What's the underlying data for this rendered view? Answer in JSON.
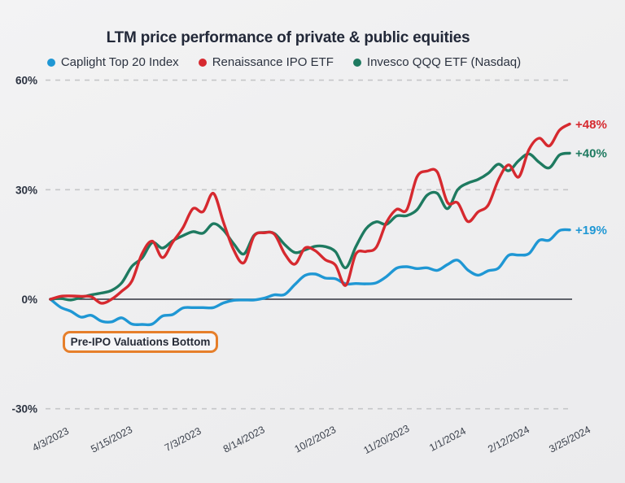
{
  "header": {
    "title": "LTM price performance of private & public equities"
  },
  "colors": {
    "background": "#efeff0",
    "title_text": "#222838",
    "axis_line": "#31343e",
    "gridline": "#c5c6c8",
    "y_tick_text": "#2b3240",
    "x_tick_text": "#3b414c",
    "annotation_border": "#E67F2B"
  },
  "chart_data": {
    "type": "line",
    "title": "LTM price performance of private & public equities",
    "xlabel": "",
    "ylabel": "",
    "grid": "horizontal dashed gridlines at -30%, 30%, 60%; solid axis line at 0%",
    "legend_position": "top center",
    "ylim": [
      -33,
      65
    ],
    "y_ticks": [
      {
        "label": "60%",
        "value": 60
      },
      {
        "label": "30%",
        "value": 30
      },
      {
        "label": "0%",
        "value": 0
      },
      {
        "label": "-30%",
        "value": -30
      }
    ],
    "x_ticks": [
      {
        "label": "4/3/2023",
        "index": 0
      },
      {
        "label": "5/15/2023",
        "index": 6
      },
      {
        "label": "7/3/2023",
        "index": 13
      },
      {
        "label": "8/14/2023",
        "index": 19
      },
      {
        "label": "10/2/2023",
        "index": 26
      },
      {
        "label": "11/20/2023",
        "index": 33
      },
      {
        "label": "1/1/2024",
        "index": 39
      },
      {
        "label": "2/12/2024",
        "index": 45
      },
      {
        "label": "3/25/2024",
        "index": 51
      }
    ],
    "x_units": "weekly points from 4/3/2023 to 3/25/2024",
    "series": [
      {
        "name": "Caplight Top 20 Index",
        "color": "#1F97D4",
        "end_label": "+19%",
        "values": [
          0,
          -2.2,
          -3.3,
          -4.9,
          -4.4,
          -6.0,
          -6.2,
          -5.1,
          -6.8,
          -6.9,
          -6.8,
          -4.6,
          -4.2,
          -2.4,
          -2.3,
          -2.3,
          -2.3,
          -1.0,
          -0.3,
          -0.2,
          -0.2,
          0.3,
          1.2,
          1.3,
          4.0,
          6.5,
          6.9,
          5.8,
          5.6,
          4.2,
          4.3,
          4.2,
          4.5,
          6.2,
          8.5,
          8.9,
          8.4,
          8.6,
          7.9,
          9.5,
          10.7,
          8.0,
          6.6,
          7.8,
          8.5,
          12.0,
          12.1,
          12.5,
          16.1,
          16.2,
          18.8,
          19.0
        ]
      },
      {
        "name": "Invesco QQQ ETF (Nasdaq)",
        "color": "#1E7A60",
        "end_label": "+40%",
        "values": [
          0,
          0.2,
          -0.2,
          0.5,
          1.2,
          1.7,
          2.4,
          4.5,
          9.0,
          11.3,
          15.5,
          14.0,
          16.0,
          17.4,
          18.5,
          18.1,
          20.7,
          18.9,
          15.2,
          12.4,
          17.5,
          18.3,
          18.0,
          15.0,
          12.8,
          13.5,
          14.5,
          14.4,
          13.0,
          8.6,
          14.4,
          19.3,
          21.2,
          20.5,
          22.8,
          22.9,
          24.5,
          28.5,
          29.0,
          24.8,
          30.0,
          31.8,
          32.8,
          34.5,
          37.0,
          35.2,
          38.0,
          39.8,
          37.5,
          36.0,
          39.5,
          40.0
        ]
      },
      {
        "name": "Renaissance IPO ETF",
        "color": "#D6292F",
        "end_label": "+48%",
        "values": [
          0,
          0.8,
          0.9,
          0.8,
          0.7,
          -1.1,
          0.0,
          2.2,
          5.0,
          12.5,
          15.9,
          11.4,
          15.6,
          19.5,
          24.8,
          24.0,
          29.0,
          21.0,
          13.5,
          10.0,
          17.3,
          18.2,
          17.8,
          12.5,
          9.6,
          14.0,
          13.3,
          10.8,
          9.3,
          3.8,
          12.4,
          13.1,
          14.2,
          21.0,
          24.6,
          24.5,
          33.5,
          35.1,
          34.8,
          26.5,
          26.4,
          21.3,
          23.9,
          25.8,
          32.7,
          36.8,
          33.5,
          41.0,
          44.1,
          42.0,
          46.3,
          48.0
        ]
      }
    ],
    "legend_order": [
      0,
      2,
      1
    ],
    "annotation": {
      "text": "Pre-IPO Valuations Bottom"
    }
  }
}
